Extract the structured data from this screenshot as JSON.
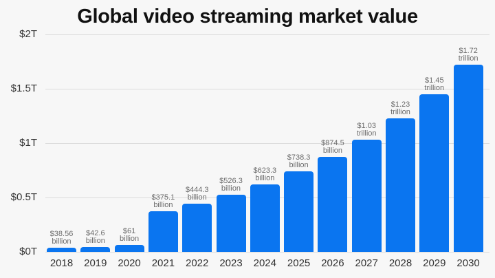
{
  "chart_data": {
    "type": "bar",
    "title": "Global video streaming market value",
    "xlabel": "",
    "ylabel": "",
    "ylim": [
      0,
      2
    ],
    "y_unit": "trillion USD",
    "yticks": [
      "$0T",
      "$0.5T",
      "$1T",
      "$1.5T",
      "$2T"
    ],
    "ytick_values": [
      0,
      0.5,
      1,
      1.5,
      2
    ],
    "grid": true,
    "legend": null,
    "bar_color": "#0a75f0",
    "categories": [
      "2018",
      "2019",
      "2020",
      "2021",
      "2022",
      "2023",
      "2024",
      "2025",
      "2026",
      "2027",
      "2028",
      "2029",
      "2030"
    ],
    "values": [
      0.03856,
      0.0426,
      0.061,
      0.3751,
      0.4443,
      0.5263,
      0.6233,
      0.7383,
      0.8745,
      1.03,
      1.23,
      1.45,
      1.72
    ],
    "data_labels": [
      [
        "$38.56",
        "billion"
      ],
      [
        "$42.6",
        "billion"
      ],
      [
        "$61",
        "billion"
      ],
      [
        "$375.1",
        "billion"
      ],
      [
        "$444.3",
        "billion"
      ],
      [
        "$526.3",
        "billion"
      ],
      [
        "$623.3",
        "billion"
      ],
      [
        "$738.3",
        "billion"
      ],
      [
        "$874.5",
        "billion"
      ],
      [
        "$1.03",
        "trillion"
      ],
      [
        "$1.23",
        "trillion"
      ],
      [
        "$1.45",
        "trillion"
      ],
      [
        "$1.72",
        "trillion"
      ]
    ]
  }
}
